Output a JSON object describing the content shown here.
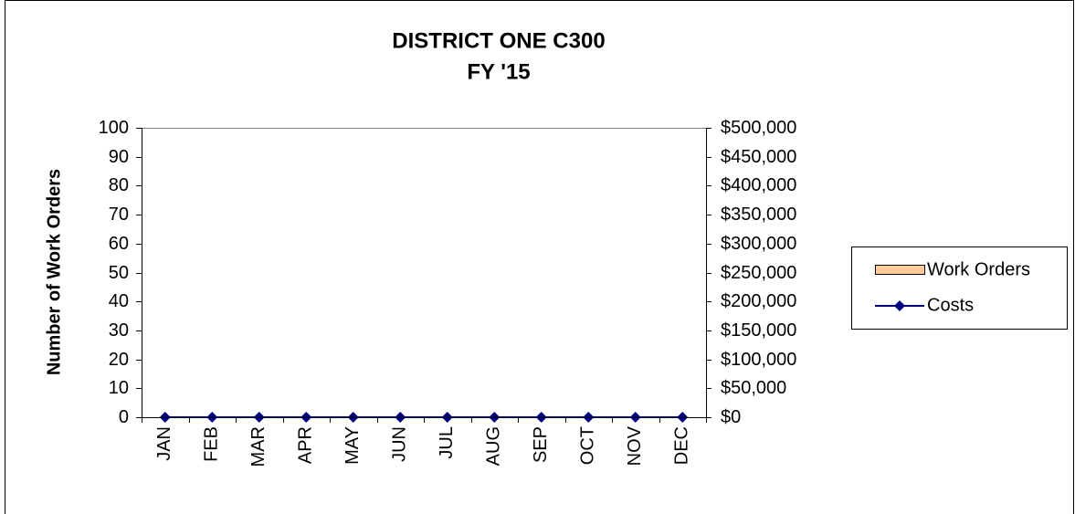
{
  "chart_data": {
    "type": "bar",
    "title": "DISTRICT ONE C300",
    "subtitle": "FY '15",
    "y_label": "Number of Work Orders",
    "categories": [
      "JAN",
      "FEB",
      "MAR",
      "APR",
      "MAY",
      "JUN",
      "JUL",
      "AUG",
      "SEP",
      "OCT",
      "NOV",
      "DEC"
    ],
    "series": [
      {
        "name": "Work Orders",
        "color": "#ffcc99",
        "type": "bar",
        "values": [
          0,
          0,
          0,
          0,
          0,
          0,
          0,
          0,
          0,
          0,
          0,
          0
        ]
      },
      {
        "name": "Costs",
        "color": "#000080",
        "type": "line",
        "axis": "y2",
        "values": [
          0,
          0,
          0,
          0,
          0,
          0,
          0,
          0,
          0,
          0,
          0,
          0
        ]
      }
    ],
    "ylim": [
      0,
      100
    ],
    "yticks": [
      0,
      10,
      20,
      30,
      40,
      50,
      60,
      70,
      80,
      90,
      100
    ],
    "y2lim": [
      0,
      500000
    ],
    "y2ticks": [
      {
        "value": 0,
        "label": "$0"
      },
      {
        "value": 50000,
        "label": "$50,000"
      },
      {
        "value": 100000,
        "label": "$100,000"
      },
      {
        "value": 150000,
        "label": "$150,000"
      },
      {
        "value": 200000,
        "label": "$200,000"
      },
      {
        "value": 250000,
        "label": "$250,000"
      },
      {
        "value": 300000,
        "label": "$300,000"
      },
      {
        "value": 350000,
        "label": "$350,000"
      },
      {
        "value": 400000,
        "label": "$400,000"
      },
      {
        "value": 450000,
        "label": "$450,000"
      },
      {
        "value": 500000,
        "label": "$500,000"
      }
    ],
    "legend": "right"
  }
}
